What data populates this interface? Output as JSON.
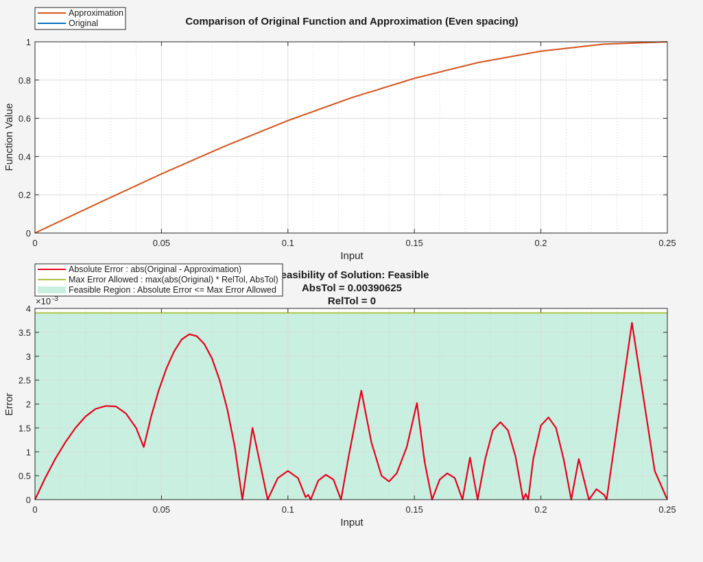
{
  "chart_data": [
    {
      "type": "line",
      "title": "Comparison of Original Function and Approximation (Even spacing)",
      "xlabel": "Input",
      "ylabel": "Function Value",
      "xlim": [
        0,
        0.25
      ],
      "ylim": [
        0,
        1
      ],
      "xticks": [
        "0",
        "0.05",
        "0.1",
        "0.15",
        "0.2",
        "0.25"
      ],
      "yticks": [
        "0",
        "0.2",
        "0.4",
        "0.6",
        "0.8",
        "1"
      ],
      "grid": true,
      "legend_position": "top-left",
      "x": [
        0,
        0.025,
        0.05,
        0.075,
        0.1,
        0.125,
        0.15,
        0.175,
        0.2,
        0.225,
        0.25
      ],
      "series": [
        {
          "name": "Approximation",
          "color": "#d95319",
          "values": [
            0,
            0.156,
            0.309,
            0.454,
            0.588,
            0.707,
            0.809,
            0.891,
            0.951,
            0.988,
            1.0
          ]
        },
        {
          "name": "Original",
          "color": "#0072bd",
          "values": [
            0,
            0.156,
            0.309,
            0.454,
            0.588,
            0.707,
            0.809,
            0.891,
            0.951,
            0.988,
            1.0
          ]
        }
      ]
    },
    {
      "type": "line",
      "title_lines": [
        "Feasibility of Solution: Feasible",
        "AbsTol = 0.00390625",
        "RelTol = 0"
      ],
      "xlabel": "Input",
      "ylabel": "Error",
      "y_exponent_label": "×10",
      "y_exponent_power": "-3",
      "xlim": [
        0,
        0.25
      ],
      "ylim": [
        0,
        4
      ],
      "xticks": [
        "0",
        "0.05",
        "0.1",
        "0.15",
        "0.2",
        "0.25"
      ],
      "yticks": [
        "0",
        "0.5",
        "1",
        "1.5",
        "2",
        "2.5",
        "3",
        "3.5",
        "4"
      ],
      "grid": true,
      "legend_position": "top-left",
      "max_error_allowed": 3.90625,
      "series": [
        {
          "name": "Absolute Error : abs(Original - Approximation)",
          "color": "#e8001c",
          "points": [
            [
              0,
              0
            ],
            [
              0.004,
              0.45
            ],
            [
              0.008,
              0.85
            ],
            [
              0.012,
              1.2
            ],
            [
              0.016,
              1.5
            ],
            [
              0.02,
              1.74
            ],
            [
              0.024,
              1.9
            ],
            [
              0.028,
              1.96
            ],
            [
              0.032,
              1.95
            ],
            [
              0.036,
              1.8
            ],
            [
              0.04,
              1.5
            ],
            [
              0.043,
              1.1
            ],
            [
              0.046,
              1.75
            ],
            [
              0.049,
              2.3
            ],
            [
              0.052,
              2.75
            ],
            [
              0.055,
              3.1
            ],
            [
              0.058,
              3.35
            ],
            [
              0.061,
              3.46
            ],
            [
              0.064,
              3.42
            ],
            [
              0.067,
              3.25
            ],
            [
              0.07,
              2.95
            ],
            [
              0.073,
              2.5
            ],
            [
              0.076,
              1.9
            ],
            [
              0.079,
              1.1
            ],
            [
              0.082,
              0
            ],
            [
              0.086,
              1.5
            ],
            [
              0.092,
              0
            ],
            [
              0.096,
              0.45
            ],
            [
              0.1,
              0.6
            ],
            [
              0.104,
              0.45
            ],
            [
              0.107,
              0.05
            ],
            [
              0.108,
              0.1
            ],
            [
              0.109,
              0
            ],
            [
              0.112,
              0.4
            ],
            [
              0.115,
              0.52
            ],
            [
              0.118,
              0.42
            ],
            [
              0.121,
              0
            ],
            [
              0.124,
              0.9
            ],
            [
              0.129,
              2.28
            ],
            [
              0.133,
              1.2
            ],
            [
              0.137,
              0.5
            ],
            [
              0.14,
              0.38
            ],
            [
              0.143,
              0.55
            ],
            [
              0.147,
              1.1
            ],
            [
              0.151,
              2.02
            ],
            [
              0.154,
              0.8
            ],
            [
              0.157,
              0
            ],
            [
              0.16,
              0.42
            ],
            [
              0.163,
              0.55
            ],
            [
              0.166,
              0.45
            ],
            [
              0.169,
              0
            ],
            [
              0.172,
              0.88
            ],
            [
              0.175,
              0
            ],
            [
              0.178,
              0.85
            ],
            [
              0.181,
              1.45
            ],
            [
              0.184,
              1.62
            ],
            [
              0.187,
              1.45
            ],
            [
              0.19,
              0.9
            ],
            [
              0.193,
              0
            ],
            [
              0.194,
              0.12
            ],
            [
              0.195,
              0
            ],
            [
              0.197,
              0.85
            ],
            [
              0.2,
              1.55
            ],
            [
              0.203,
              1.72
            ],
            [
              0.206,
              1.5
            ],
            [
              0.209,
              0.85
            ],
            [
              0.212,
              0
            ],
            [
              0.215,
              0.85
            ],
            [
              0.219,
              0
            ],
            [
              0.222,
              0.22
            ],
            [
              0.225,
              0.1
            ],
            [
              0.226,
              0
            ],
            [
              0.236,
              3.7
            ],
            [
              0.245,
              0.6
            ],
            [
              0.25,
              0
            ]
          ]
        },
        {
          "name": "Max Error Allowed : max(abs(Original) * RelTol, AbsTol)",
          "color": "#a9c23f",
          "points": [
            [
              0,
              3.90625
            ],
            [
              0.25,
              3.90625
            ]
          ]
        },
        {
          "name": "Feasible Region : Absolute Error <= Max Error Allowed",
          "color": "#c8efdf"
        }
      ]
    }
  ]
}
